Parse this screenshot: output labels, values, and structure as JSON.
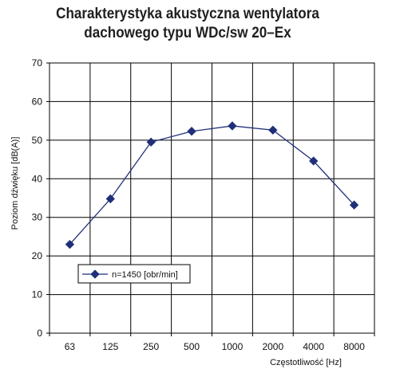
{
  "chart_data": {
    "type": "line",
    "title_lines": [
      "Charakterystyka akustyczna wentylatora",
      "dachowego typu WDc/sw 20–Ex"
    ],
    "xlabel": "Częstotliwość [Hz]",
    "ylabel": "Poziom dźwięku [dB(A)]",
    "categories": [
      "63",
      "125",
      "250",
      "500",
      "1000",
      "2000",
      "4000",
      "8000"
    ],
    "ylim": [
      0,
      70
    ],
    "yticks": [
      0,
      10,
      20,
      30,
      40,
      50,
      60,
      70
    ],
    "grid": true,
    "legend_position": "lower-left",
    "series": [
      {
        "name": "n=1450 [obr/min]",
        "color": "#1f2f7a",
        "values": [
          23,
          34.8,
          49.5,
          52.3,
          53.7,
          52.6,
          44.6,
          33.2
        ]
      }
    ]
  }
}
